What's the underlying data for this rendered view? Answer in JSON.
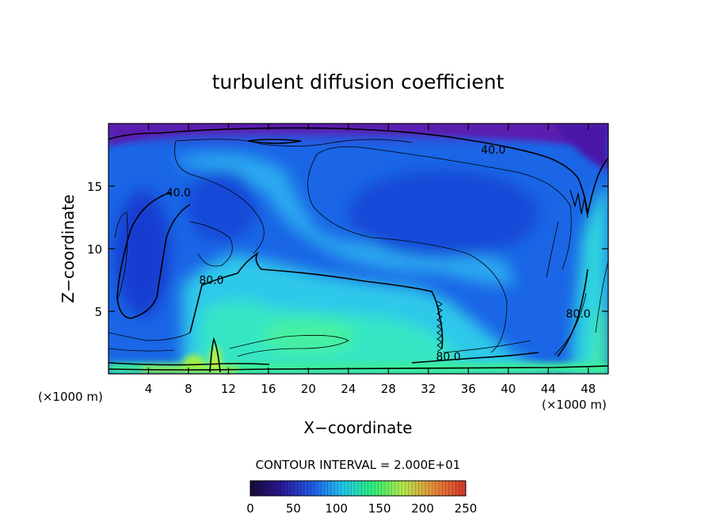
{
  "chart_data": {
    "type": "heatmap",
    "title": "turbulent diffusion coefficient",
    "xlabel": "X−coordinate",
    "ylabel": "Z−coordinate",
    "x_unit_label": "(×1000 m)",
    "z_unit_label": "(×1000 m)",
    "xlim": [
      0,
      50
    ],
    "ylim": [
      0,
      20
    ],
    "x_ticks": [
      4,
      8,
      12,
      16,
      20,
      24,
      28,
      32,
      36,
      40,
      44,
      48
    ],
    "y_ticks": [
      5,
      10,
      15
    ],
    "contour_interval_text": "CONTOUR INTERVAL = 2.000E+01",
    "contour_labels": [
      {
        "text": "40.0",
        "x": 7.0,
        "z": 14.5
      },
      {
        "text": "40.0",
        "x": 38.5,
        "z": 17.9
      },
      {
        "text": "80.0",
        "x": 10.3,
        "z": 7.5
      },
      {
        "text": "80.0",
        "x": 34.0,
        "z": 1.4
      },
      {
        "text": "80.0",
        "x": 47.0,
        "z": 4.8
      }
    ],
    "colorbar": {
      "min": 0,
      "max": 250,
      "ticks": [
        0,
        50,
        100,
        150,
        200,
        250
      ],
      "colors": [
        "#1a0a3c",
        "#2a1a9a",
        "#1f5ae6",
        "#22c8ee",
        "#2ef07a",
        "#b8e84a",
        "#e88a3a",
        "#d83a2a"
      ]
    },
    "colors": {
      "low": "#6a1aa8",
      "mid_low": "#1a50e0",
      "mid": "#28b6f0",
      "high": "#30f0a0",
      "peak": "#a0f040"
    }
  }
}
